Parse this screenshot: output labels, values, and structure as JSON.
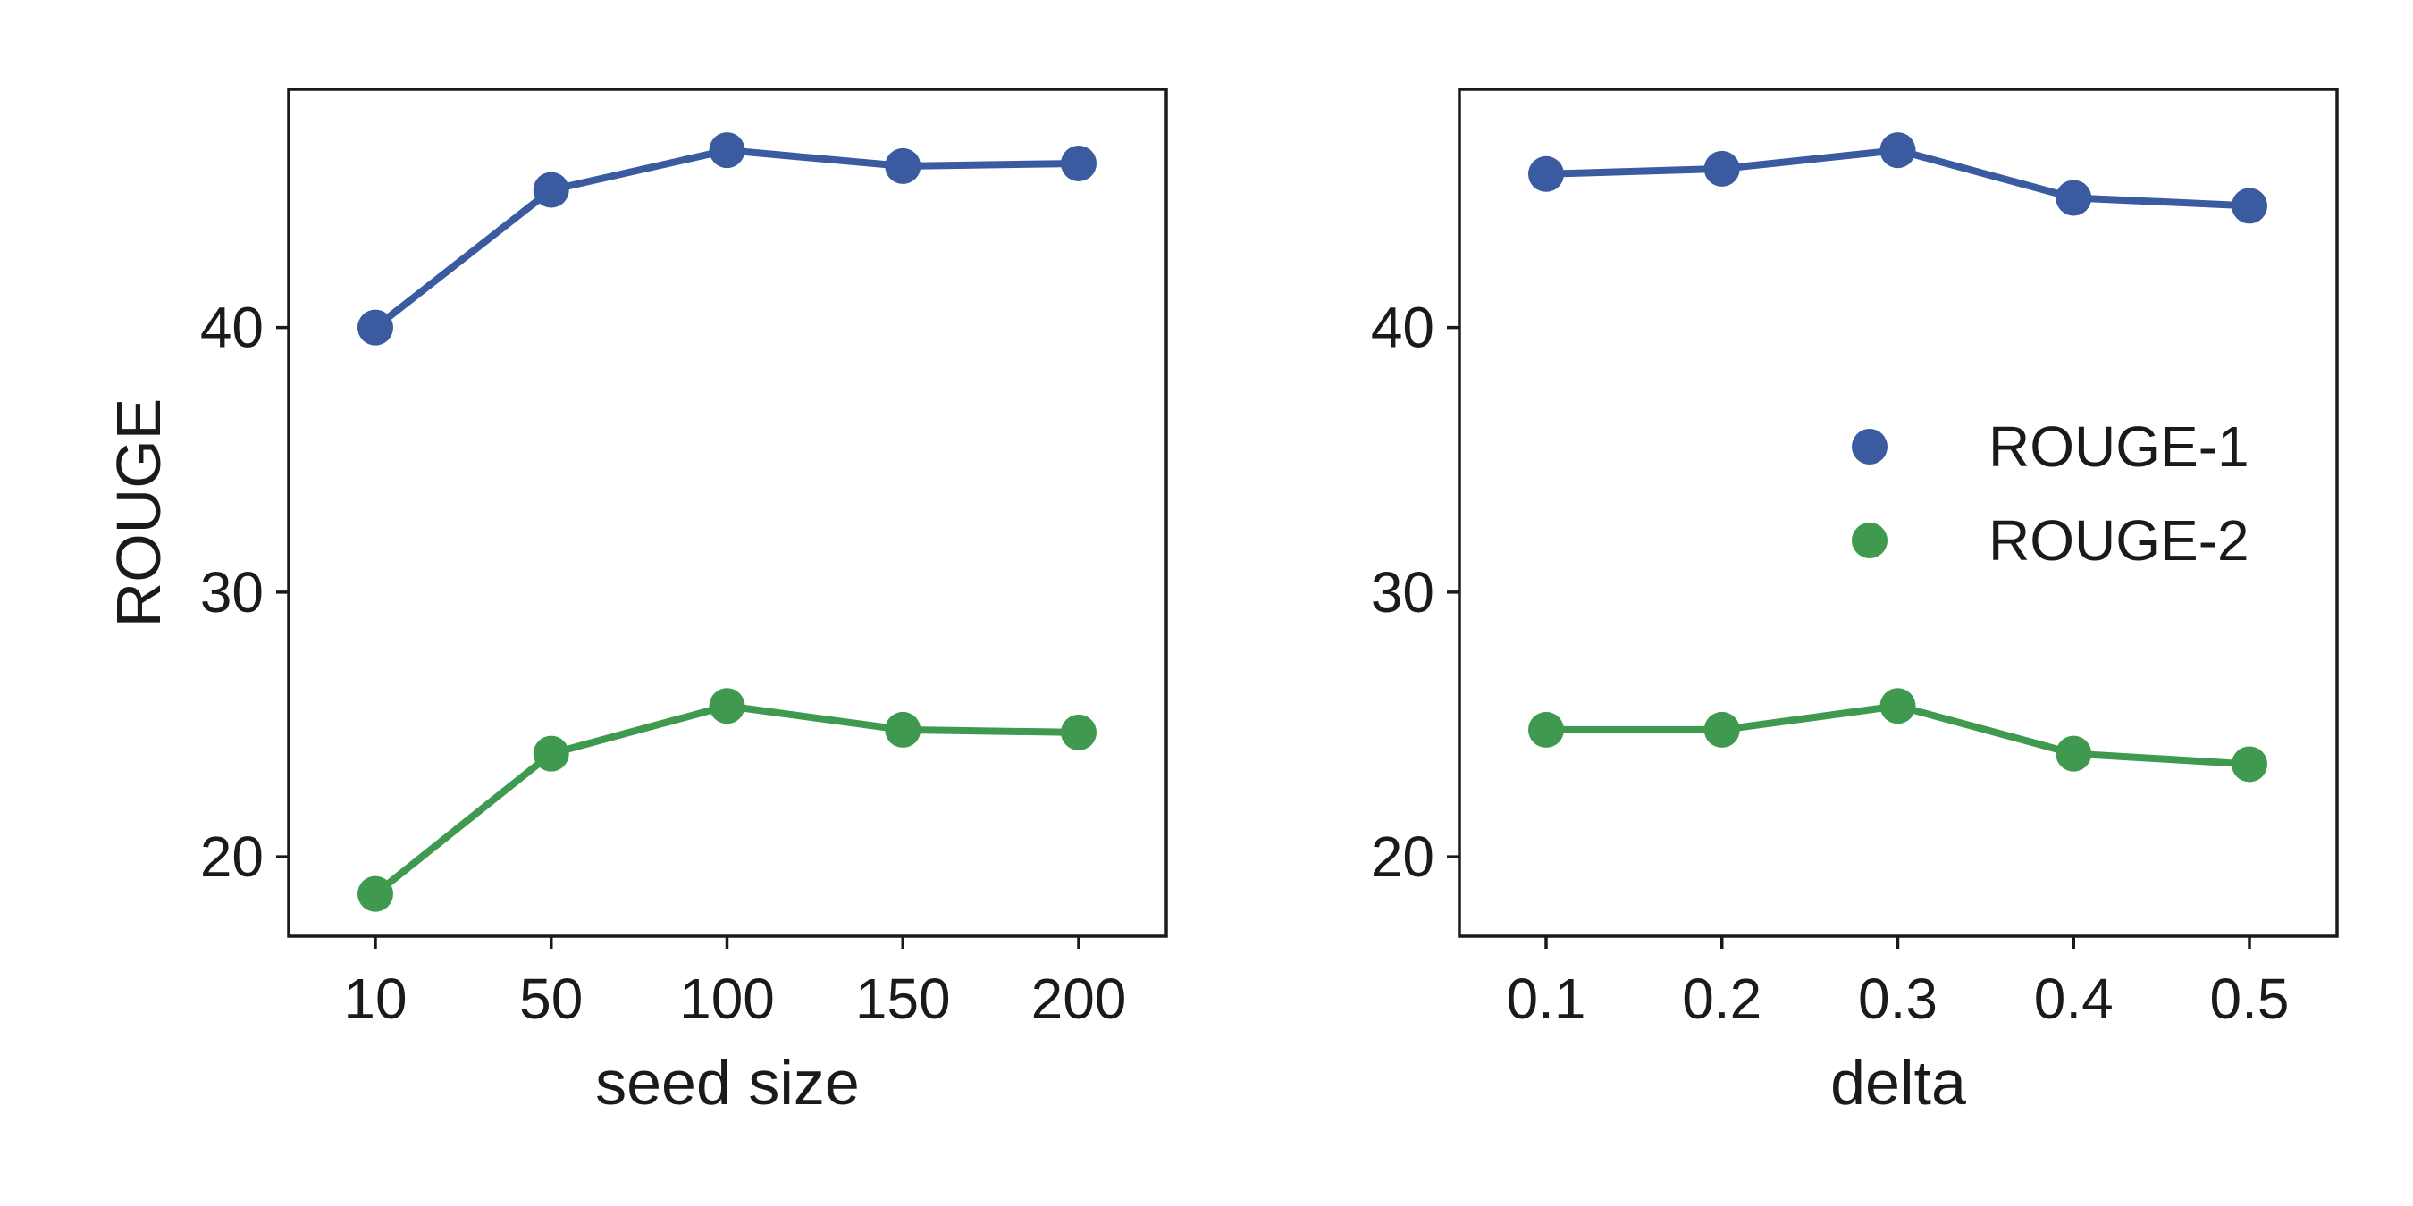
{
  "chart_data": [
    {
      "type": "line",
      "xlabel": "seed size",
      "ylabel": "ROUGE",
      "categories": [
        "10",
        "50",
        "100",
        "150",
        "200"
      ],
      "ylim": [
        17,
        49
      ],
      "yticks": [
        20,
        30,
        40
      ],
      "grid": false,
      "legend": null,
      "series": [
        {
          "name": "ROUGE-1",
          "color": "#3a5ba0",
          "values": [
            40.0,
            45.2,
            46.7,
            46.1,
            46.2
          ]
        },
        {
          "name": "ROUGE-2",
          "color": "#3f9a50",
          "values": [
            18.6,
            23.9,
            25.7,
            24.8,
            24.7
          ]
        }
      ]
    },
    {
      "type": "line",
      "xlabel": "delta",
      "ylabel": "",
      "categories": [
        "0.1",
        "0.2",
        "0.3",
        "0.4",
        "0.5"
      ],
      "ylim": [
        17,
        49
      ],
      "yticks": [
        20,
        30,
        40
      ],
      "grid": false,
      "legend": "center-right",
      "series": [
        {
          "name": "ROUGE-1",
          "color": "#3a5ba0",
          "values": [
            45.8,
            46.0,
            46.7,
            44.9,
            44.6
          ]
        },
        {
          "name": "ROUGE-2",
          "color": "#3f9a50",
          "values": [
            24.8,
            24.8,
            25.7,
            23.9,
            23.5
          ]
        }
      ]
    }
  ]
}
